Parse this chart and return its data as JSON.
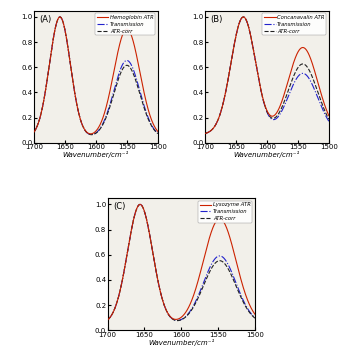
{
  "panels": [
    "A",
    "B",
    "C"
  ],
  "xlabel": "Wavenumber/cm⁻¹",
  "xrange": [
    1700,
    1500
  ],
  "yrange": [
    0,
    1.05
  ],
  "yticks": [
    0,
    0.2,
    0.4,
    0.6,
    0.8,
    1.0
  ],
  "legend_A": [
    "Hemoglobin ATR",
    "Transmission",
    "ATR-corr"
  ],
  "legend_B": [
    "Concanavalin ATR",
    "Transmission",
    "ATR-corr"
  ],
  "legend_C": [
    "Lysozyme ATR",
    "Transmission",
    "ATR-corr"
  ],
  "colors": [
    "#cc2200",
    "#2222cc",
    "#222222"
  ],
  "bg_color": "#f2f0ea",
  "amide_I_A": 1658,
  "amide_II_A": 1550,
  "amide_I_B": 1638,
  "amide_II_B": 1542,
  "amide_I_C": 1656,
  "amide_II_C": 1548,
  "figsize": [
    3.39,
    3.55
  ],
  "dpi": 100
}
